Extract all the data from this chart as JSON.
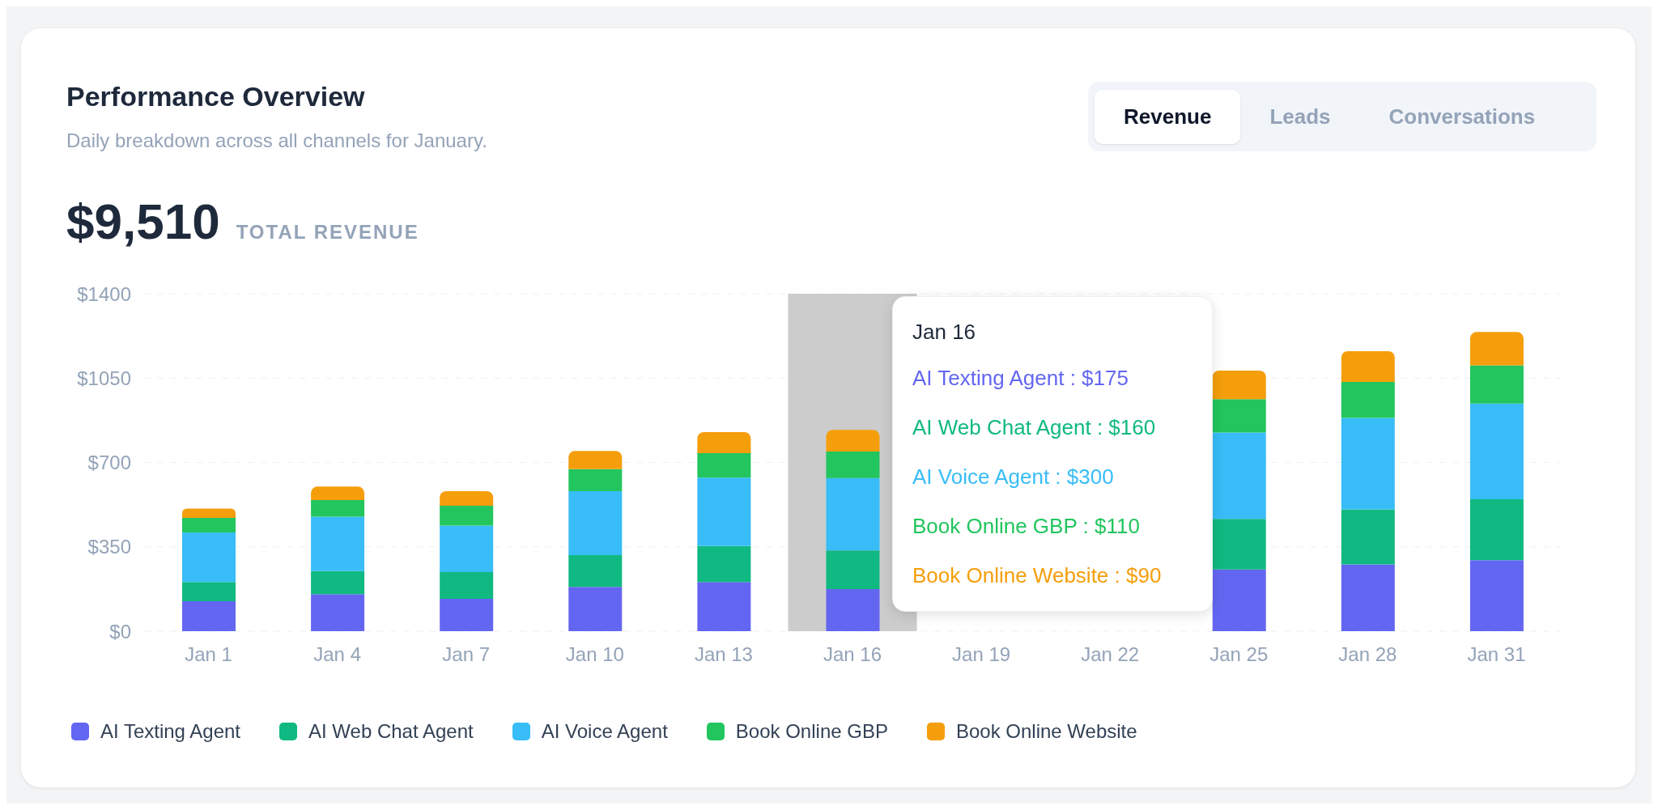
{
  "chart_data": {
    "type": "bar",
    "title": "Performance Overview",
    "subtitle": "Daily breakdown across all channels for January.",
    "categories": [
      "Jan 1",
      "Jan 4",
      "Jan 7",
      "Jan 10",
      "Jan 13",
      "Jan 16",
      "Jan 19",
      "Jan 22",
      "Jan 25",
      "Jan 28",
      "Jan 31"
    ],
    "series": [
      {
        "name": "AI Texting Agent",
        "color": "#6366f1",
        "values": [
          124,
          154,
          134,
          184,
          204,
          175,
          null,
          null,
          256,
          277,
          295
        ]
      },
      {
        "name": "AI Web Chat Agent",
        "color": "#10b981",
        "values": [
          80,
          95,
          111,
          132,
          149,
          160,
          null,
          null,
          210,
          228,
          252
        ]
      },
      {
        "name": "AI Voice Agent",
        "color": "#38bdf8",
        "values": [
          206,
          226,
          193,
          265,
          284,
          300,
          null,
          null,
          358,
          380,
          397
        ]
      },
      {
        "name": "Book Online GBP",
        "color": "#22c55e",
        "values": [
          60,
          69,
          82,
          91,
          102,
          110,
          null,
          null,
          139,
          149,
          159
        ]
      },
      {
        "name": "Book Online Website",
        "color": "#f59e0b",
        "values": [
          39,
          56,
          61,
          76,
          87,
          90,
          null,
          null,
          118,
          128,
          138
        ]
      }
    ],
    "stacked": true,
    "ylim": [
      0,
      1400
    ],
    "yticks": [
      {
        "value": 0,
        "label": "$0"
      },
      {
        "value": 350,
        "label": "$350"
      },
      {
        "value": 700,
        "label": "$700"
      },
      {
        "value": 1050,
        "label": "$1050"
      },
      {
        "value": 1400,
        "label": "$1400"
      }
    ],
    "grid": "y",
    "legend": "bottom",
    "bands": [
      {
        "axis": "x",
        "from": "Jan 16",
        "to": "Jan 16",
        "color": "#cccccc"
      }
    ],
    "annotations": [
      "Revenue",
      "Leads",
      "Conversations",
      "$9,510",
      "TOTAL REVENUE",
      "Jan 16",
      "AI Texting Agent : $175",
      "AI Web Chat Agent : $160",
      "AI Voice Agent : $300",
      "Book Online GBP : $110",
      "Book Online Website : $90"
    ]
  }
}
